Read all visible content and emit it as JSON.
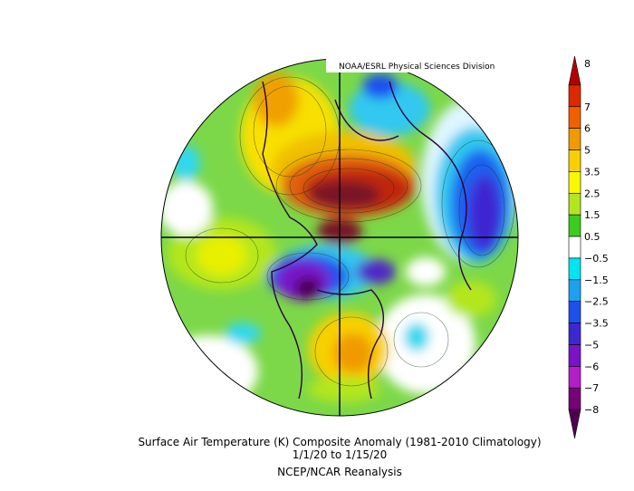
{
  "credit": "NOAA/ESRL Physical Sciences Division",
  "title": "Surface Air Temperature (K) Composite Anomaly (1981-2010 Climatology)",
  "date_start": "1/1/20",
  "date_sep": "to",
  "date_end": "1/15/20",
  "source": "NCEP/NCAR Reanalysis",
  "colorbar": {
    "labels": [
      "8",
      "7",
      "6",
      "5",
      "3.5",
      "2.5",
      "1.5",
      "0.5",
      "−0.5",
      "−1.5",
      "−2.5",
      "−3.5",
      "−5",
      "−6",
      "−7",
      "−8"
    ],
    "colors": [
      "#b40000",
      "#e02800",
      "#f06000",
      "#f09a00",
      "#f8d000",
      "#f8f800",
      "#b4e61e",
      "#3ccc1e",
      "#ffffff",
      "#00e6f0",
      "#1ea0f0",
      "#1e50f0",
      "#3c28d2",
      "#7814c8",
      "#b41ec8",
      "#780078",
      "#500050"
    ]
  },
  "map": {
    "projection": "north polar stereographic",
    "regions": [
      {
        "name": "arctic-warm-anomaly",
        "color": "#b42814"
      },
      {
        "name": "north-america-cold-anomaly",
        "color": "#7814c8"
      },
      {
        "name": "siberia-warm-anomaly",
        "color": "#f8d000"
      },
      {
        "name": "europe-warm-anomaly",
        "color": "#f09a00"
      },
      {
        "name": "canada-cold-anomaly",
        "color": "#1e50f0"
      }
    ]
  }
}
